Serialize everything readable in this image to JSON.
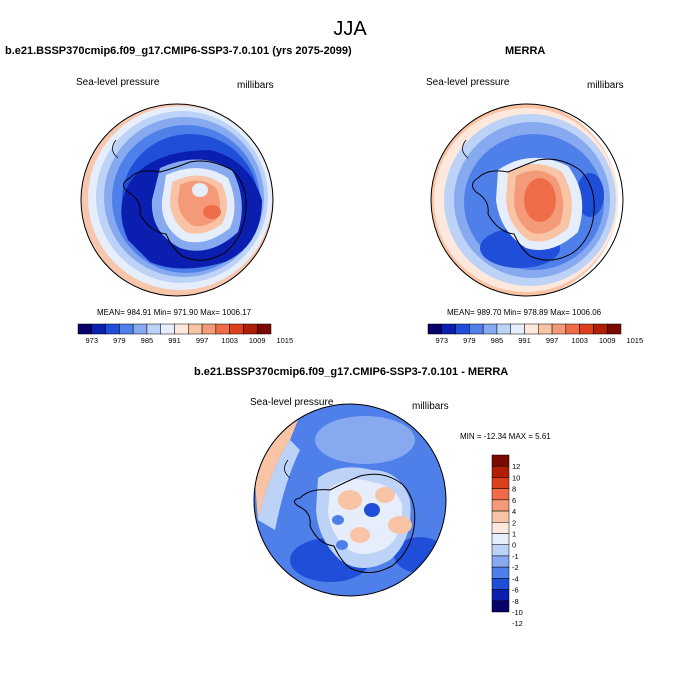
{
  "figure": {
    "title": "JJA"
  },
  "panels": [
    {
      "title": "b.e21.BSSP370cmip6.f09_g17.CMIP6-SSP3-7.0.101 (yrs 2075-2099)",
      "variable": "Sea-level pressure",
      "units": "millibars",
      "stats": "MEAN= 984.91   Min= 971.90   Max= 1006.17",
      "colorbar_labels": [
        "973",
        "979",
        "985",
        "991",
        "997",
        "1003",
        "1009",
        "1015"
      ]
    },
    {
      "title": "MERRA",
      "variable": "Sea-level pressure",
      "units": "millibars",
      "stats": "MEAN= 989.70   Min= 978.89   Max= 1006.06",
      "colorbar_labels": [
        "973",
        "979",
        "985",
        "991",
        "997",
        "1003",
        "1009",
        "1015"
      ]
    },
    {
      "title": "b.e21.BSSP370cmip6.f09_g17.CMIP6-SSP3-7.0.101 - MERRA",
      "variable": "Sea-level pressure",
      "units": "millibars",
      "stats": "MIN = -12.34 MAX =   5.61",
      "colorbar_labels": [
        "12",
        "10",
        "8",
        "6",
        "4",
        "2",
        "1",
        "0",
        "-1",
        "-2",
        "-4",
        "-6",
        "-8",
        "-10",
        "-12"
      ]
    }
  ],
  "colors": {
    "abs_scale": [
      "#08006b",
      "#0a1fb0",
      "#1f4fd8",
      "#4f7fe8",
      "#86a9f0",
      "#bcd2f7",
      "#e6eefc",
      "#fde8de",
      "#f9c3a6",
      "#f59a78",
      "#ee6c48",
      "#dc3f1c",
      "#b01e06",
      "#7a0a00"
    ],
    "diff_scale": [
      "#7a0a00",
      "#b01e06",
      "#dc3f1c",
      "#ee6c48",
      "#f59a78",
      "#f9c3a6",
      "#fde8de",
      "#e6eefc",
      "#bcd2f7",
      "#86a9f0",
      "#4f7fe8",
      "#1f4fd8",
      "#0a1fb0",
      "#08006b"
    ]
  }
}
